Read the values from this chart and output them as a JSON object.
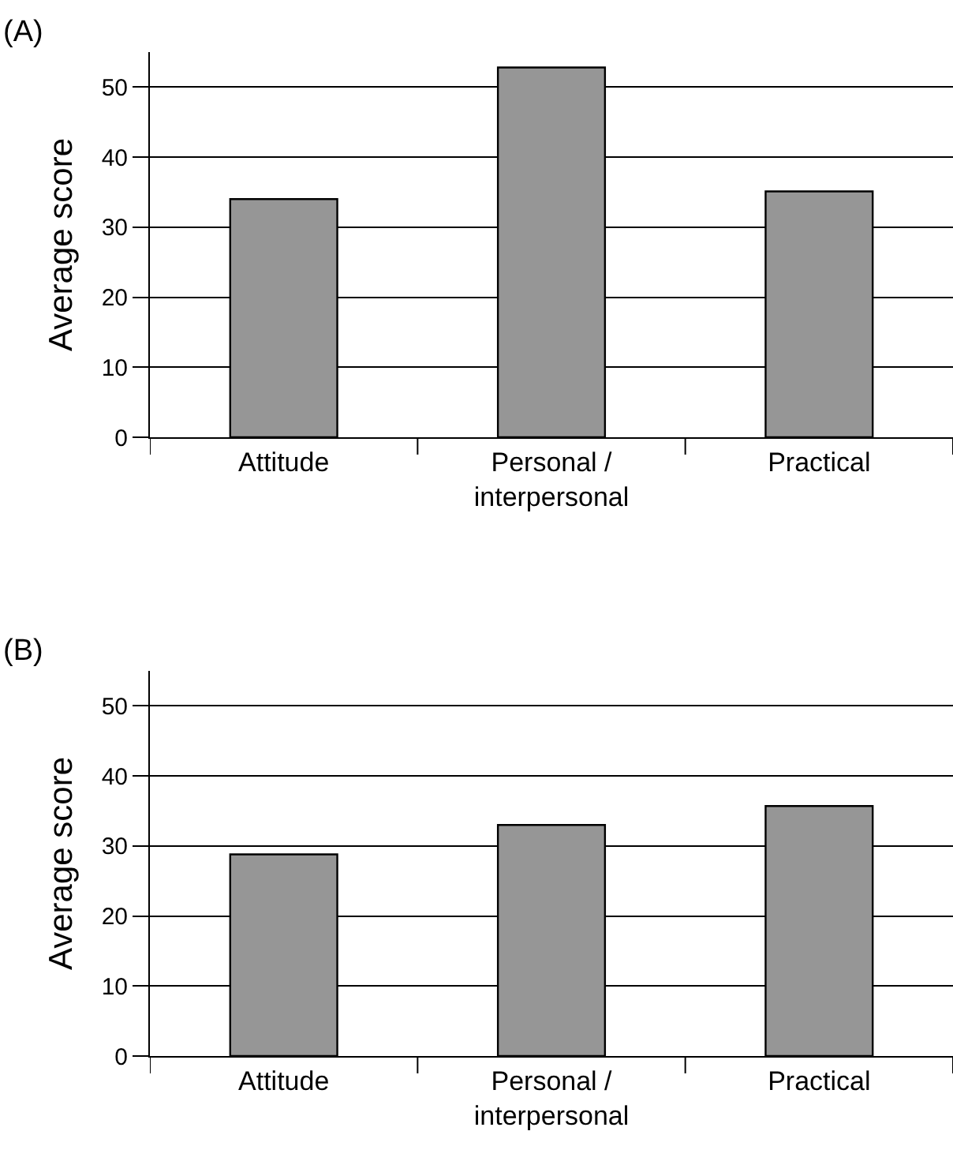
{
  "chart_data": [
    {
      "type": "bar",
      "title": "(A)",
      "ylabel": "Average score",
      "categories": [
        "Attitude",
        "Personal / interpersonal",
        "Practical"
      ],
      "values": [
        34.0,
        52.8,
        35.1
      ],
      "color": "#969696",
      "ylim": [
        0,
        55
      ],
      "yticks": [
        0,
        10,
        20,
        30,
        40,
        50
      ],
      "grid": "y"
    },
    {
      "type": "bar",
      "title": "(B)",
      "ylabel": "Average score",
      "categories": [
        "Attitude",
        "Personal / interpersonal",
        "Practical"
      ],
      "values": [
        28.8,
        33.0,
        35.7
      ],
      "color": "#969696",
      "ylim": [
        0,
        55
      ],
      "yticks": [
        0,
        10,
        20,
        30,
        40,
        50
      ],
      "grid": "y"
    }
  ]
}
